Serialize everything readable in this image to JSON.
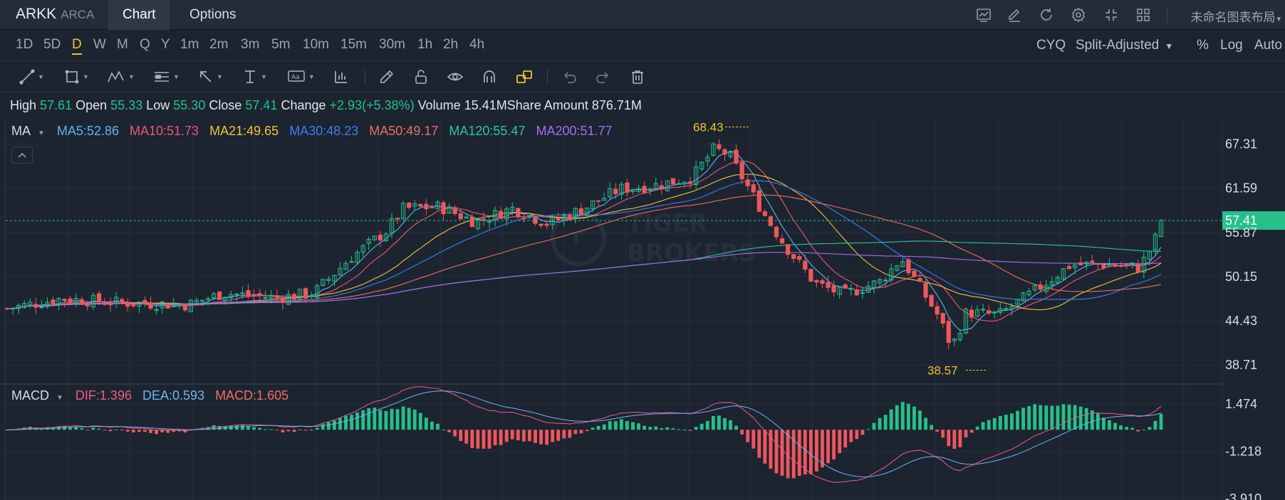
{
  "header": {
    "symbol": "ARKK",
    "exchange": "ARCA",
    "tabs": [
      {
        "label": "Chart",
        "active": true
      },
      {
        "label": "Options",
        "active": false
      }
    ],
    "icons": [
      "chart-window-icon",
      "draw-pen-icon",
      "refresh-icon",
      "settings-gear-icon",
      "fullscreen-compress-icon",
      "grid-layout-icon"
    ],
    "layout_name": "未命名图表布局"
  },
  "periods": {
    "items": [
      "1D",
      "5D",
      "D",
      "W",
      "M",
      "Q",
      "Y",
      "1m",
      "2m",
      "3m",
      "5m",
      "10m",
      "15m",
      "30m",
      "1h",
      "2h",
      "4h"
    ],
    "active": "D",
    "options": {
      "cyq": "CYQ",
      "adjust": "Split-Adjusted",
      "percent": "%",
      "log": "Log",
      "auto": "Auto"
    }
  },
  "toolbar": {
    "tools": [
      "trend-line-icon",
      "rectangle-icon",
      "pattern-icon",
      "fibonacci-icon",
      "arrow-icon",
      "text-cursor-icon",
      "annotation-icon",
      "indicator-bars-icon",
      "pencil-icon",
      "unlock-icon",
      "eye-icon",
      "magnet-icon",
      "link-shapes-icon",
      "undo-icon",
      "redo-icon",
      "trash-icon"
    ]
  },
  "quote": {
    "high_label": "High",
    "high": "57.61",
    "open_label": "Open",
    "open": "55.33",
    "low_label": "Low",
    "low": "55.30",
    "close_label": "Close",
    "close": "57.41",
    "change_label": "Change",
    "change": "+2.93(+5.38%)",
    "volume_label": "Volume",
    "volume": "15.41M",
    "amount_label": "Share Amount",
    "amount": "876.71M"
  },
  "ma_legend": {
    "title": "MA",
    "items": [
      {
        "label": "MA5:52.86",
        "color": "#5fb3f0"
      },
      {
        "label": "MA10:51.73",
        "color": "#f0567a"
      },
      {
        "label": "MA21:49.65",
        "color": "#f0c23a"
      },
      {
        "label": "MA30:48.23",
        "color": "#3a7ff0"
      },
      {
        "label": "MA50:49.17",
        "color": "#f26d5f"
      },
      {
        "label": "MA120:55.47",
        "color": "#2ec4a0"
      },
      {
        "label": "MA200:51.77",
        "color": "#a66cf0"
      }
    ]
  },
  "macd_legend": {
    "title": "MACD",
    "dif": "DIF:1.396",
    "dif_color": "#f05a86",
    "dea": "DEA:0.593",
    "dea_color": "#6fb4f0",
    "macd": "MACD:1.605",
    "macd_color": "#f26d5f"
  },
  "watermark": {
    "line1": "TIGER",
    "line2": "BROKERS"
  },
  "chart_data": {
    "type": "candlestick",
    "price_axis": {
      "ticks": [
        "67.31",
        "61.59",
        "55.87",
        "50.15",
        "44.43",
        "38.71"
      ],
      "range": [
        36.5,
        70.5
      ]
    },
    "current_price": "57.41",
    "high_marker": "68.43",
    "low_marker": "38.57",
    "macd_axis": {
      "ticks": [
        "1.474",
        "-1.218",
        "-3.910"
      ],
      "range": [
        -4.0,
        2.6
      ]
    },
    "colors": {
      "up": "#26c08a",
      "down": "#f0565d",
      "price_badge": "#26c08a"
    }
  }
}
